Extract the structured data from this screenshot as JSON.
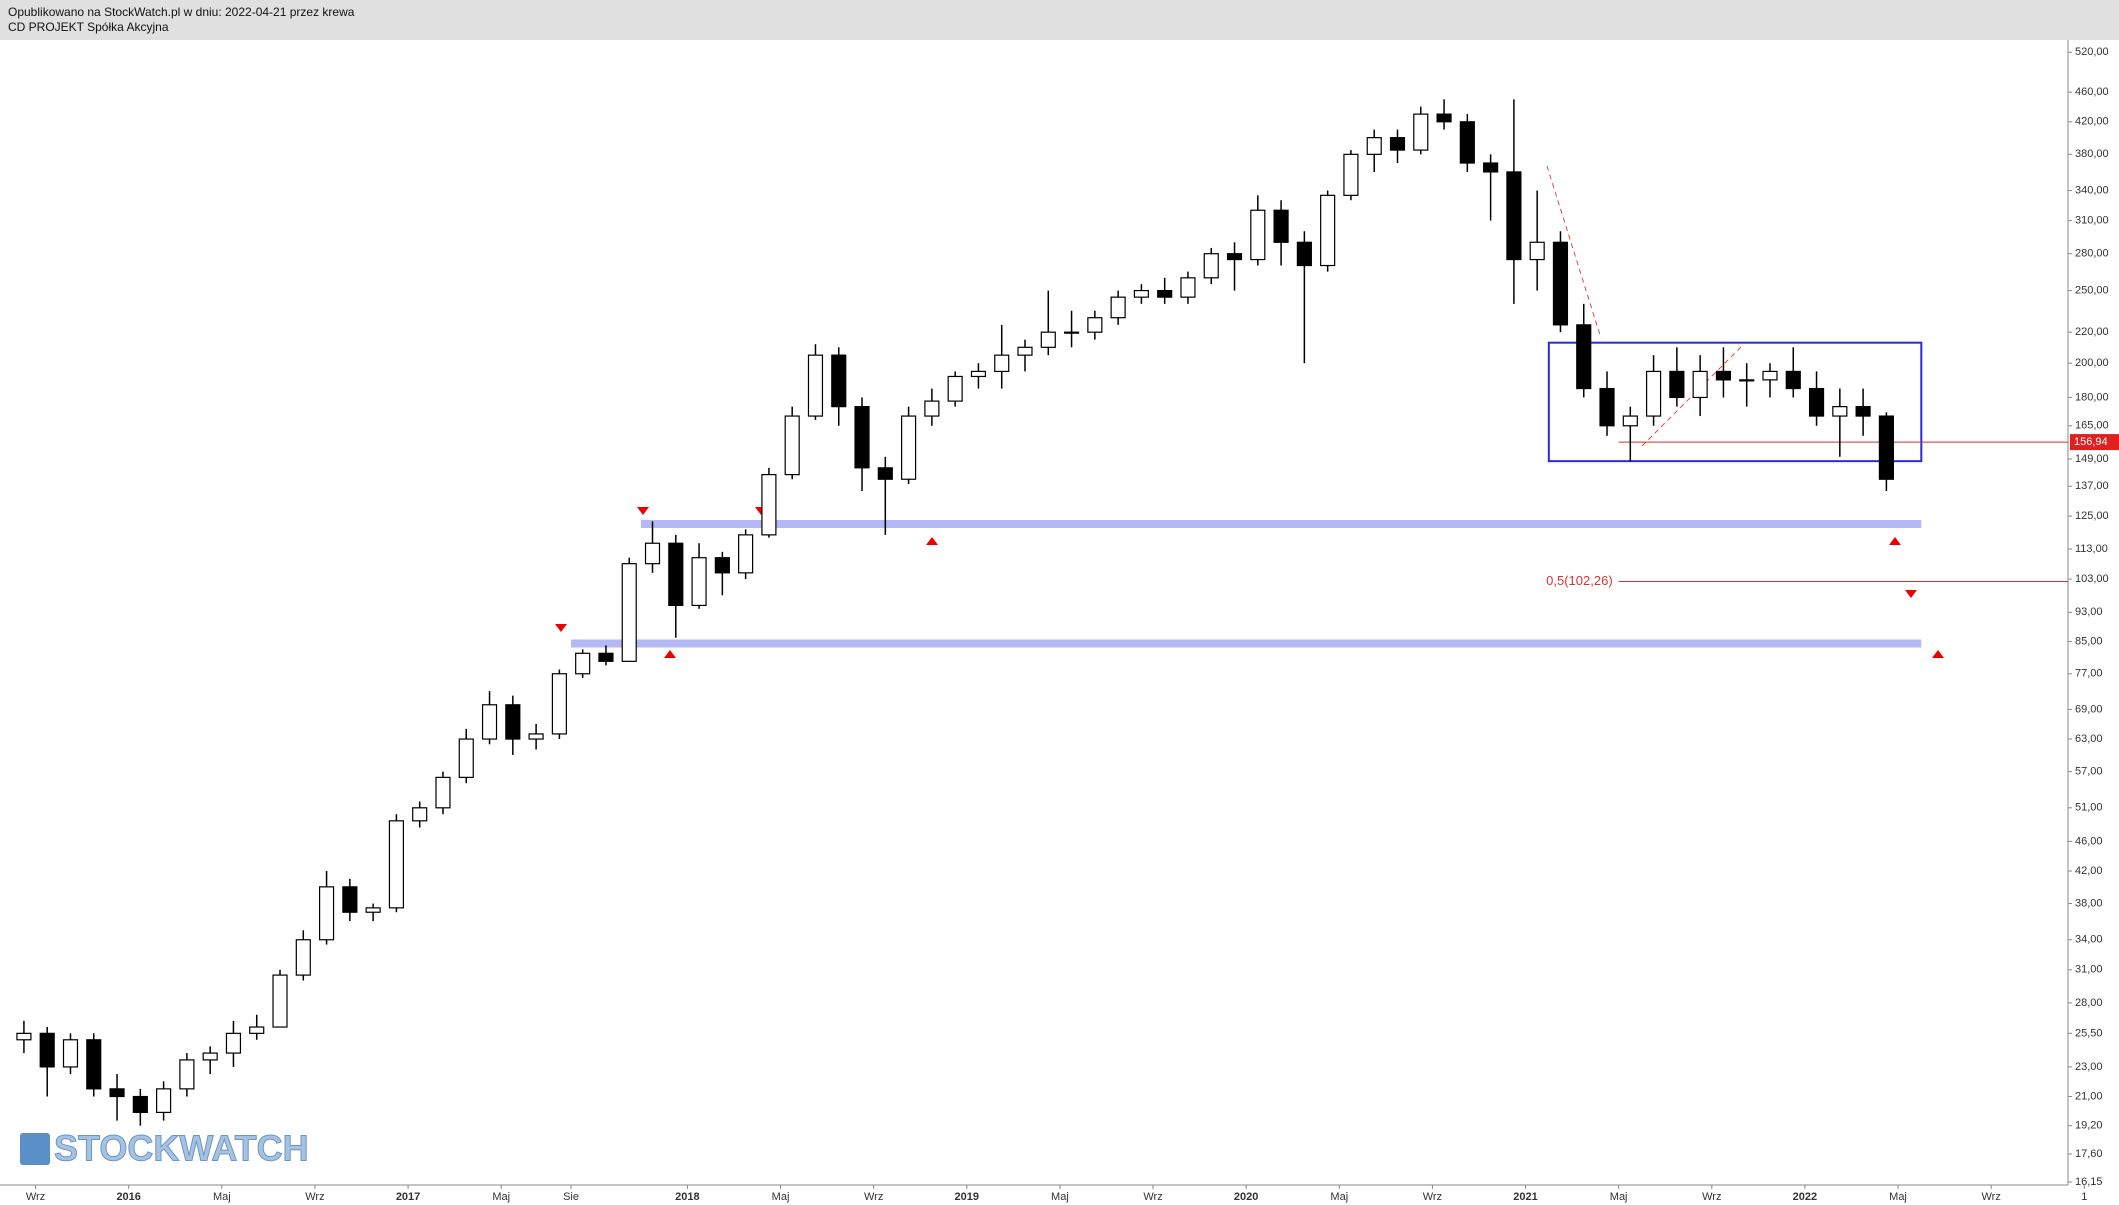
{
  "header": {
    "published": "Opublikowano na StockWatch.pl w dniu: 2022-04-21 przez krewa",
    "company": "CD PROJEKT Spółka Akcyjna"
  },
  "watermark": "STOCKWATCH",
  "chart_data": {
    "type": "candlestick",
    "log_scale": true,
    "x": [
      "2015-08",
      "2015-09",
      "2015-10",
      "2015-11",
      "2015-12",
      "2016-01",
      "2016-02",
      "2016-03",
      "2016-04",
      "2016-05",
      "2016-06",
      "2016-07",
      "2016-08",
      "2016-09",
      "2016-10",
      "2016-11",
      "2016-12",
      "2017-01",
      "2017-02",
      "2017-03",
      "2017-04",
      "2017-05",
      "2017-06",
      "2017-07",
      "2017-08",
      "2017-09",
      "2017-10",
      "2017-11",
      "2017-12",
      "2018-01",
      "2018-02",
      "2018-03",
      "2018-04",
      "2018-05",
      "2018-06",
      "2018-07",
      "2018-08",
      "2018-09",
      "2018-10",
      "2018-11",
      "2018-12",
      "2019-01",
      "2019-02",
      "2019-03",
      "2019-04",
      "2019-05",
      "2019-06",
      "2019-07",
      "2019-08",
      "2019-09",
      "2019-10",
      "2019-11",
      "2019-12",
      "2020-01",
      "2020-02",
      "2020-03",
      "2020-04",
      "2020-05",
      "2020-06",
      "2020-07",
      "2020-08",
      "2020-09",
      "2020-10",
      "2020-11",
      "2020-12",
      "2021-01",
      "2021-02",
      "2021-03",
      "2021-04",
      "2021-05",
      "2021-06",
      "2021-07",
      "2021-08",
      "2021-09",
      "2021-10",
      "2021-11",
      "2021-12",
      "2022-01",
      "2022-02",
      "2022-03",
      "2022-04"
    ],
    "open": [
      25,
      25.5,
      23,
      25,
      21.5,
      21,
      20,
      21.5,
      23.5,
      24,
      25.5,
      26,
      30.5,
      34,
      40,
      37,
      37.5,
      49,
      51,
      56,
      63,
      70,
      63,
      64,
      77,
      82,
      80,
      108,
      115,
      95,
      110,
      105,
      118,
      142,
      170,
      205,
      175,
      145,
      140,
      170,
      178,
      192,
      195,
      205,
      210,
      220,
      220,
      230,
      245,
      250,
      245,
      260,
      280,
      275,
      320,
      290,
      270,
      335,
      380,
      400,
      385,
      430,
      420,
      370,
      360,
      275,
      290,
      225,
      185,
      165,
      170,
      195,
      180,
      195,
      190,
      190,
      195,
      185,
      170,
      175,
      170
    ],
    "high": [
      26.5,
      26,
      25.5,
      25.5,
      22.5,
      21.5,
      22,
      24,
      24.5,
      26.5,
      27,
      31,
      35,
      42,
      41,
      38,
      50,
      52,
      57,
      65,
      73,
      72,
      66,
      78,
      83,
      84,
      110,
      123,
      118,
      115,
      112,
      120,
      145,
      175,
      212,
      210,
      180,
      150,
      175,
      185,
      195,
      200,
      225,
      215,
      250,
      235,
      235,
      250,
      255,
      260,
      265,
      285,
      290,
      335,
      330,
      300,
      340,
      385,
      410,
      410,
      440,
      450,
      430,
      380,
      450,
      340,
      300,
      240,
      195,
      175,
      205,
      210,
      205,
      210,
      200,
      200,
      210,
      195,
      185,
      185,
      172
    ],
    "low": [
      24,
      21,
      22.5,
      21,
      19.5,
      19.2,
      19.5,
      21,
      22.5,
      23,
      25,
      26,
      30,
      33.5,
      36,
      36,
      37,
      48,
      50,
      55,
      62,
      60,
      61,
      63,
      76,
      79,
      80,
      105,
      86,
      94,
      98,
      103,
      117,
      140,
      168,
      165,
      135,
      118,
      138,
      165,
      175,
      185,
      185,
      195,
      205,
      210,
      215,
      225,
      240,
      240,
      240,
      255,
      250,
      270,
      270,
      200,
      265,
      330,
      360,
      370,
      380,
      410,
      360,
      310,
      240,
      250,
      220,
      180,
      160,
      148,
      165,
      175,
      170,
      180,
      175,
      180,
      180,
      165,
      150,
      160,
      135
    ],
    "close": [
      25.5,
      23,
      25,
      21.5,
      21,
      20,
      21.5,
      23.5,
      24,
      25.5,
      26,
      30.5,
      34,
      40,
      37,
      37.5,
      49,
      51,
      56,
      63,
      70,
      63,
      64,
      77,
      82,
      80,
      108,
      115,
      95,
      110,
      105,
      118,
      142,
      170,
      205,
      175,
      145,
      140,
      170,
      178,
      192,
      195,
      205,
      210,
      220,
      220,
      230,
      245,
      250,
      245,
      260,
      280,
      275,
      320,
      290,
      270,
      335,
      380,
      400,
      385,
      430,
      420,
      370,
      360,
      275,
      290,
      225,
      185,
      165,
      170,
      195,
      180,
      195,
      190,
      190,
      195,
      185,
      170,
      175,
      170,
      140
    ],
    "xlim": [
      "2015-07",
      "2022-12"
    ],
    "xticks": [
      {
        "value": "2015-09",
        "label": "Wrz"
      },
      {
        "value": "2016-01",
        "label": "2016"
      },
      {
        "value": "2016-05",
        "label": "Maj"
      },
      {
        "value": "2016-09",
        "label": "Wrz"
      },
      {
        "value": "2017-01",
        "label": "2017"
      },
      {
        "value": "2017-05",
        "label": "Maj"
      },
      {
        "value": "2017-08",
        "label": "Sie"
      },
      {
        "value": "2018-01",
        "label": "2018"
      },
      {
        "value": "2018-05",
        "label": "Maj"
      },
      {
        "value": "2018-09",
        "label": "Wrz"
      },
      {
        "value": "2019-01",
        "label": "2019"
      },
      {
        "value": "2019-05",
        "label": "Maj"
      },
      {
        "value": "2019-09",
        "label": "Wrz"
      },
      {
        "value": "2020-01",
        "label": "2020"
      },
      {
        "value": "2020-05",
        "label": "Maj"
      },
      {
        "value": "2020-09",
        "label": "Wrz"
      },
      {
        "value": "2021-01",
        "label": "2021"
      },
      {
        "value": "2021-05",
        "label": "Maj"
      },
      {
        "value": "2021-09",
        "label": "Wrz"
      },
      {
        "value": "2022-01",
        "label": "2022"
      },
      {
        "value": "2022-05",
        "label": "Maj"
      },
      {
        "value": "2022-09",
        "label": "Wrz"
      },
      {
        "value": "2023-01",
        "label": "1"
      }
    ],
    "ylim": [
      16,
      540
    ],
    "yticks": [
      {
        "value": 520,
        "label": "520,00"
      },
      {
        "value": 460,
        "label": "460,00"
      },
      {
        "value": 420,
        "label": "420,00"
      },
      {
        "value": 380,
        "label": "380,00"
      },
      {
        "value": 340,
        "label": "340,00"
      },
      {
        "value": 310,
        "label": "310,00"
      },
      {
        "value": 280,
        "label": "280,00"
      },
      {
        "value": 250,
        "label": "250,00"
      },
      {
        "value": 220,
        "label": "220,00"
      },
      {
        "value": 200,
        "label": "200,00"
      },
      {
        "value": 180,
        "label": "180,00"
      },
      {
        "value": 165,
        "label": "165,00"
      },
      {
        "value": 149,
        "label": "149,00"
      },
      {
        "value": 137,
        "label": "137,00"
      },
      {
        "value": 125,
        "label": "125,00"
      },
      {
        "value": 113,
        "label": "113,00"
      },
      {
        "value": 103,
        "label": "103,00"
      },
      {
        "value": 93,
        "label": "93,00"
      },
      {
        "value": 85,
        "label": "85,00"
      },
      {
        "value": 77,
        "label": "77,00"
      },
      {
        "value": 69,
        "label": "69,00"
      },
      {
        "value": 63,
        "label": "63,00"
      },
      {
        "value": 57,
        "label": "57,00"
      },
      {
        "value": 51,
        "label": "51,00"
      },
      {
        "value": 46,
        "label": "46,00"
      },
      {
        "value": 42,
        "label": "42,00"
      },
      {
        "value": 38,
        "label": "38,00"
      },
      {
        "value": 34,
        "label": "34,00"
      },
      {
        "value": 31,
        "label": "31,00"
      },
      {
        "value": 28,
        "label": "28,00"
      },
      {
        "value": 25.5,
        "label": "25,50"
      },
      {
        "value": 23,
        "label": "23,00"
      },
      {
        "value": 21,
        "label": "21,00"
      },
      {
        "value": 19.2,
        "label": "19,20"
      },
      {
        "value": 17.6,
        "label": "17,60"
      },
      {
        "value": 16.15,
        "label": "16,15"
      }
    ],
    "last_price": {
      "value": 156.94,
      "label": "156,94",
      "from": "2021-05"
    },
    "fib": {
      "value": 102.26,
      "label": "0,5(102,26)",
      "from": "2021-05"
    },
    "bands": [
      {
        "value": 122,
        "from": "2017-11",
        "to": "2022-06"
      },
      {
        "value": 84.5,
        "from": "2017-08",
        "to": "2022-06"
      }
    ],
    "box": {
      "from": "2021-02",
      "to": "2022-06",
      "low": 148,
      "high": 213
    }
  }
}
